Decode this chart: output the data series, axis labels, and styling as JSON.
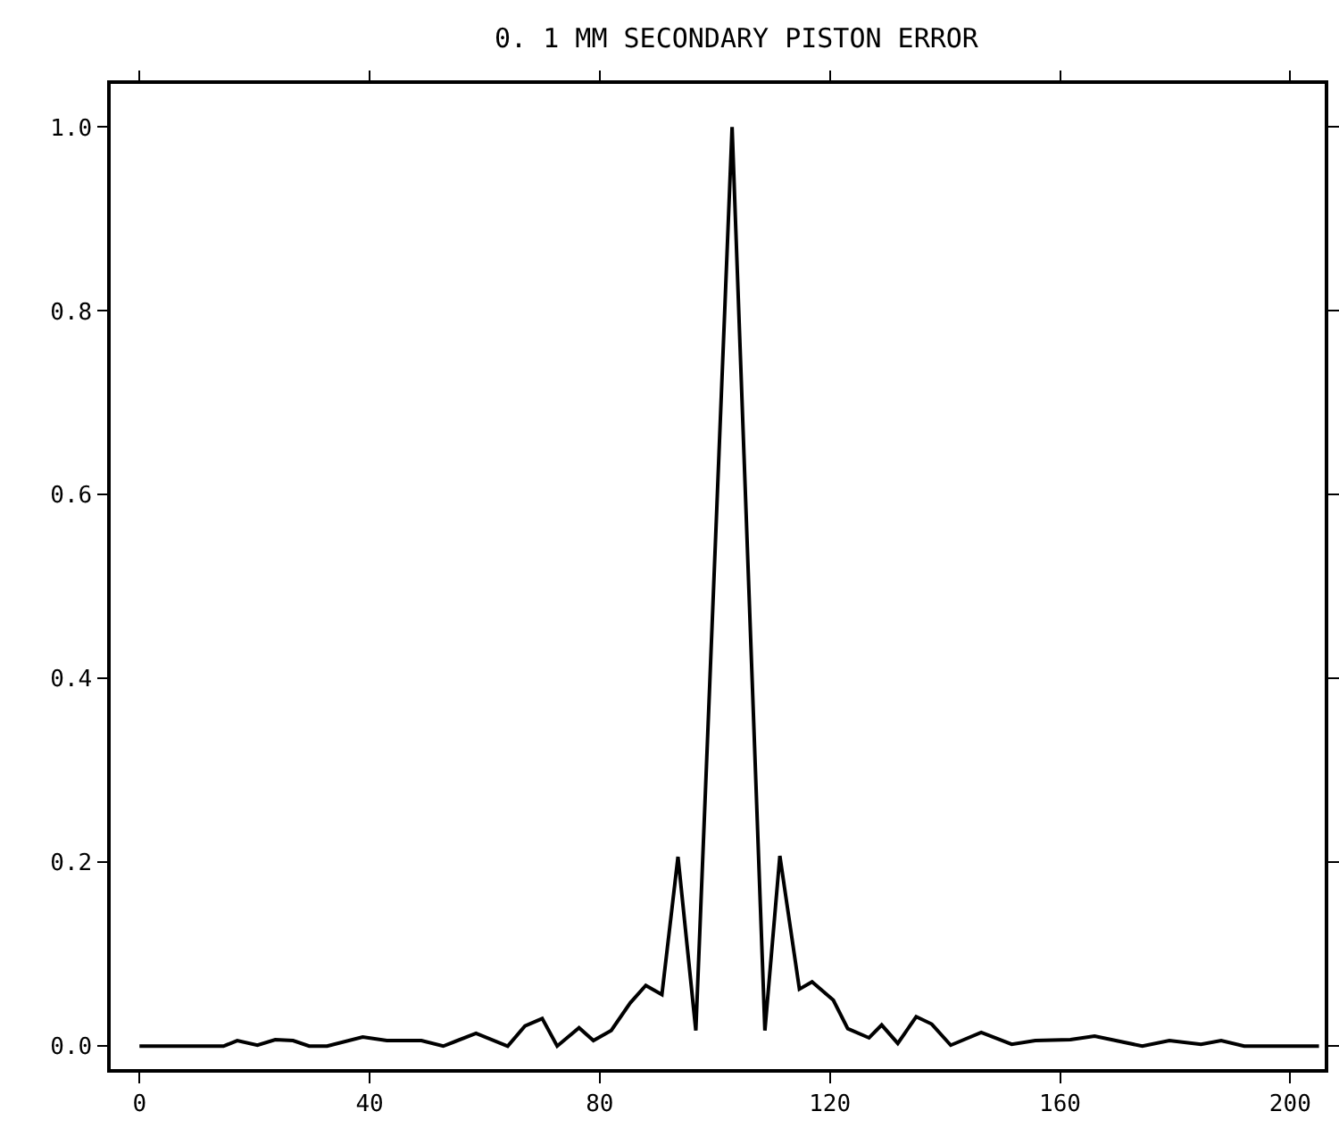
{
  "chart_data": {
    "type": "line",
    "title": "0. 1 MM SECONDARY PISTON ERROR",
    "x": [
      0,
      14.6,
      17,
      20.5,
      23.6,
      26.7,
      29.5,
      32.6,
      38.8,
      43,
      49,
      52.8,
      58.5,
      64,
      67,
      70,
      72.6,
      76.4,
      78.9,
      82,
      85.3,
      88,
      90.8,
      93.6,
      96.7,
      103,
      108.7,
      111.3,
      114.7,
      116.9,
      120.6,
      123.1,
      126.8,
      129,
      131.8,
      135,
      137.7,
      141,
      146.3,
      151.6,
      155.7,
      161.8,
      166,
      174.3,
      179,
      184.5,
      188,
      192,
      205
    ],
    "series": [
      {
        "color": "#000000",
        "values": [
          0,
          0,
          0.006,
          0.001,
          0.007,
          0.006,
          0,
          0,
          0.01,
          0.006,
          0.006,
          0,
          0.014,
          0,
          0.022,
          0.03,
          0,
          0.02,
          0.006,
          0.017,
          0.047,
          0.066,
          0.056,
          0.206,
          0.017,
          1.0,
          0.017,
          0.207,
          0.062,
          0.07,
          0.05,
          0.019,
          0.009,
          0.023,
          0.003,
          0.032,
          0.024,
          0.001,
          0.015,
          0.002,
          0.006,
          0.007,
          0.011,
          0,
          0.006,
          0.002,
          0.006,
          0,
          0
        ]
      }
    ],
    "xlim": [
      -5,
      206
    ],
    "ylim": [
      -0.025,
      1.047
    ],
    "xticks": [
      0,
      40,
      80,
      120,
      160,
      200
    ],
    "yticks": [
      {
        "value": 0,
        "label": "0.0"
      },
      {
        "value": 0.2,
        "label": "0.2"
      },
      {
        "value": 0.4,
        "label": "0.4"
      },
      {
        "value": 0.6,
        "label": "0.6"
      },
      {
        "value": 0.8,
        "label": "0.8"
      },
      {
        "value": 1.0,
        "label": "1.0"
      }
    ],
    "grid": false,
    "marker": "none",
    "line_style": "solid"
  }
}
